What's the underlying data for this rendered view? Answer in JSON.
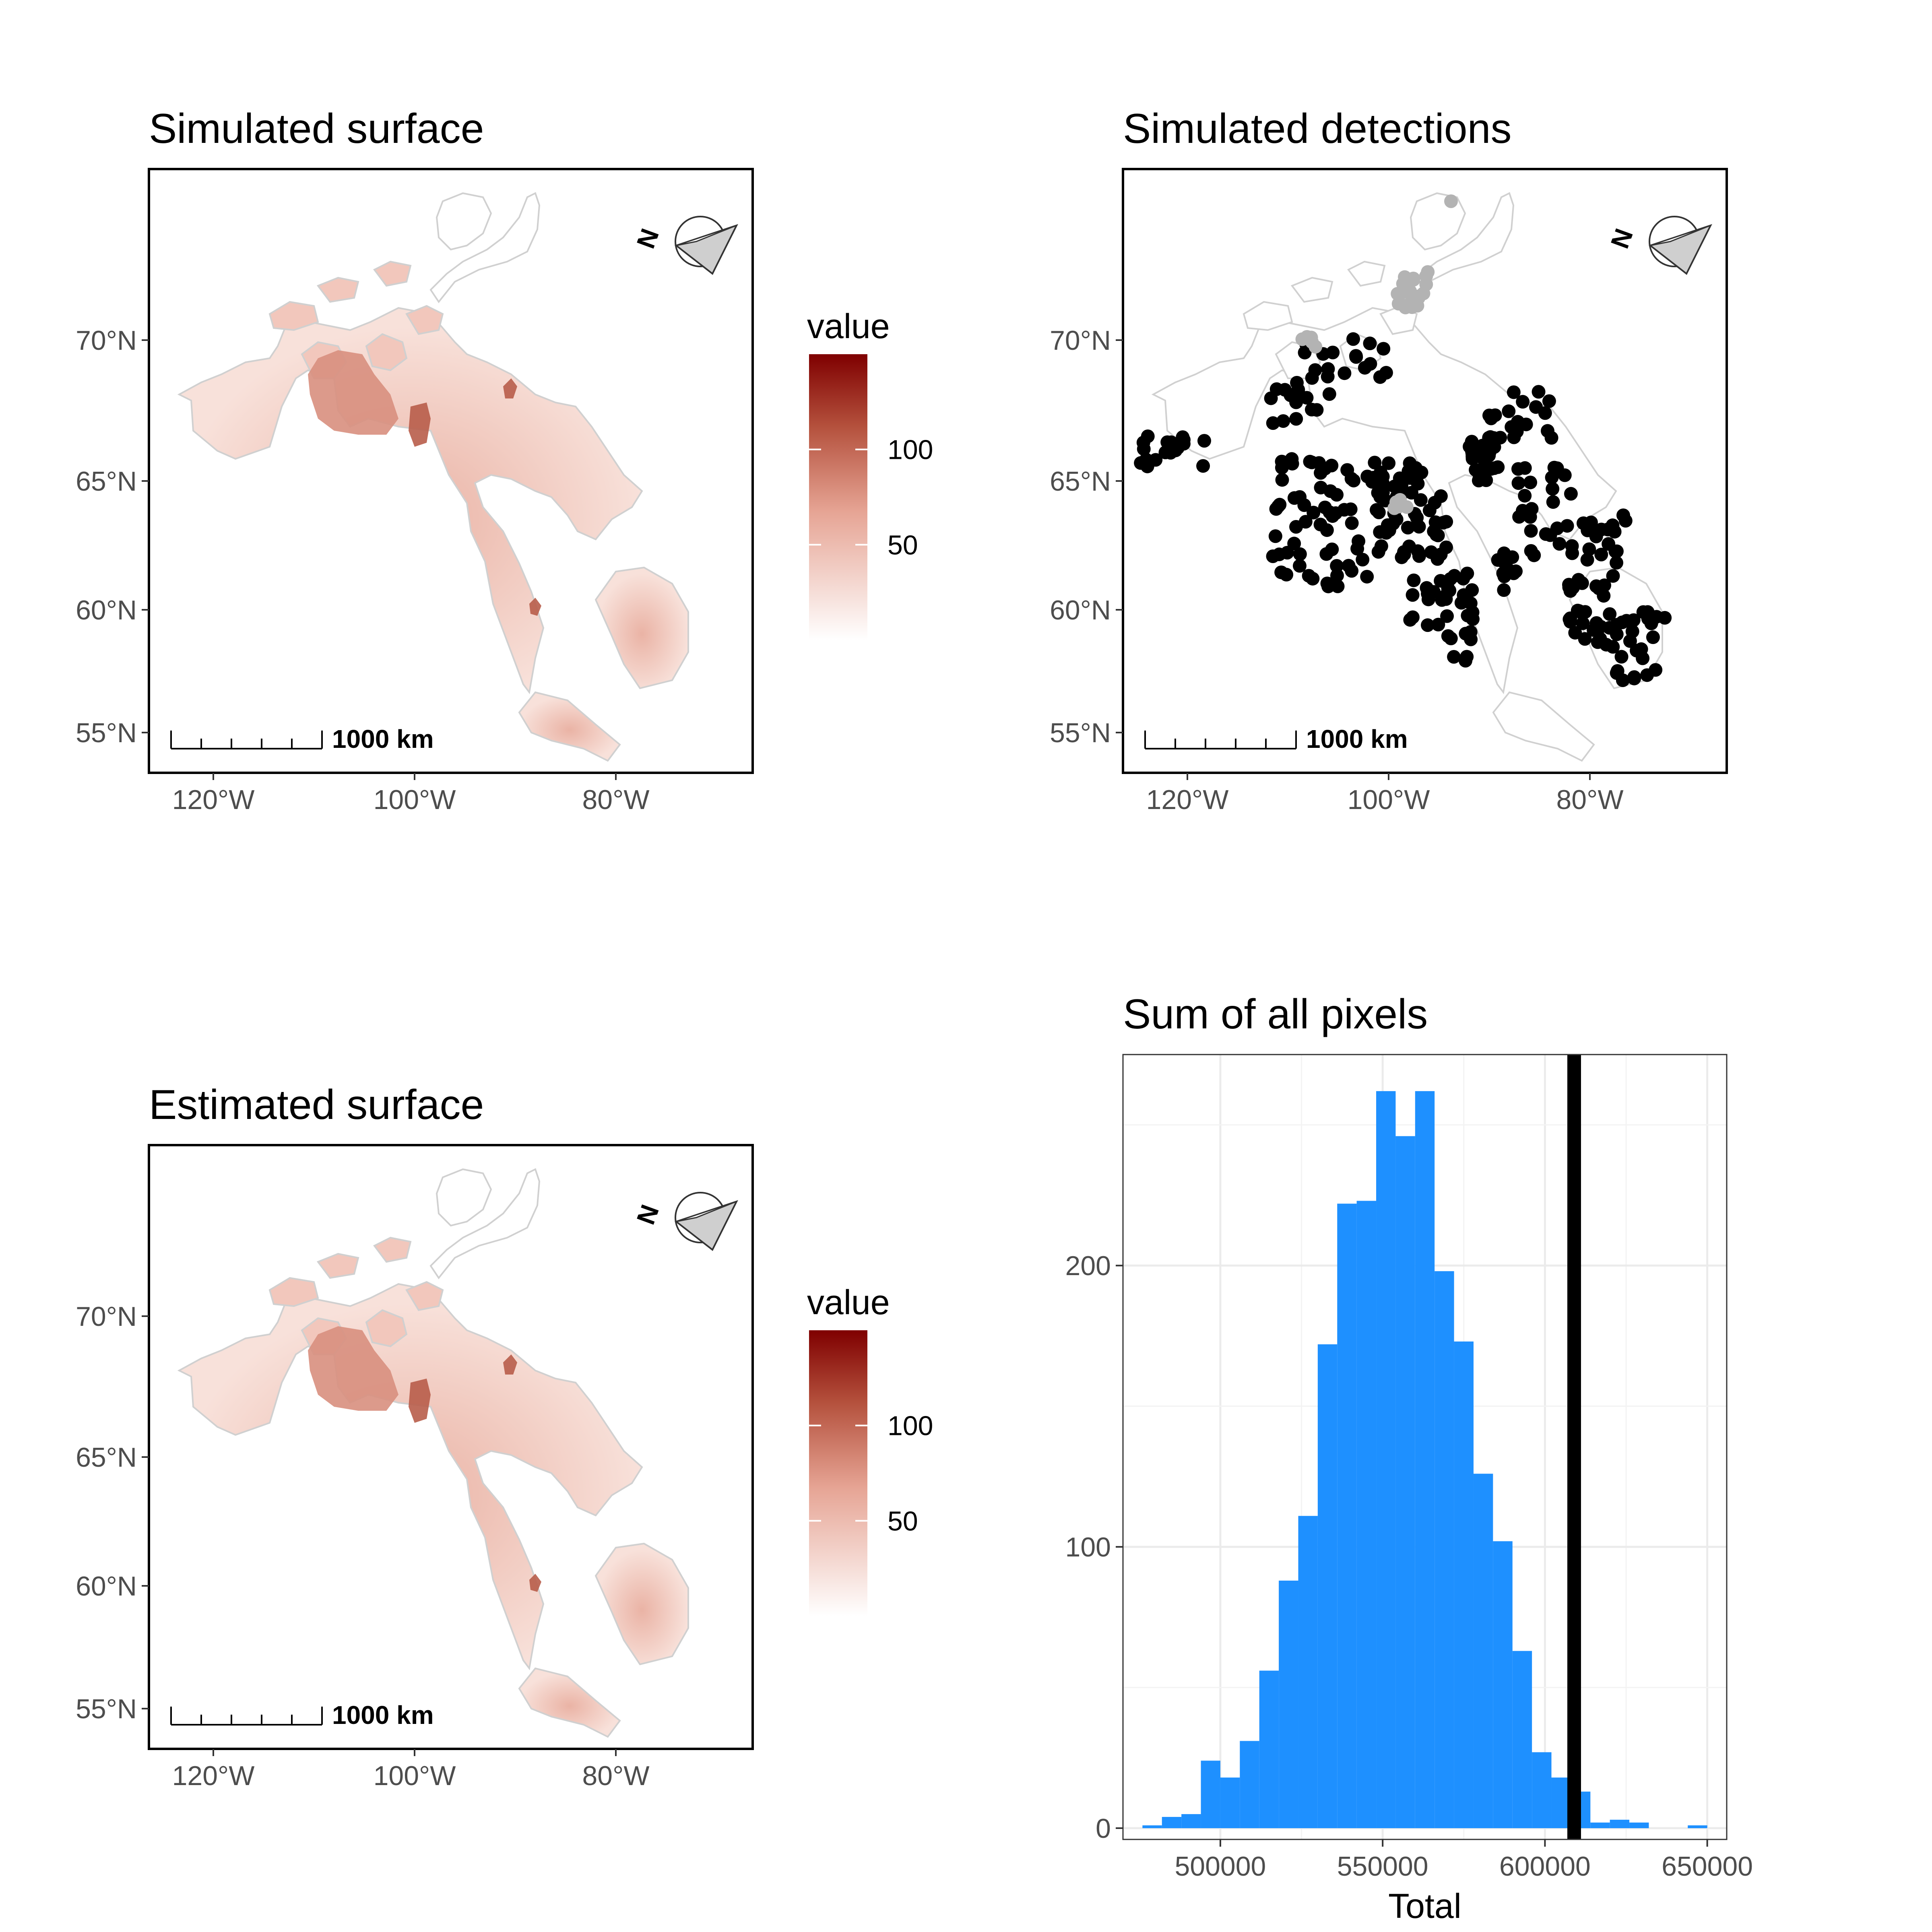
{
  "colors": {
    "surface_low": "#ffffff",
    "surface_high": "#7f0000",
    "detection_black": "#000000",
    "detection_grey": "#b3b3b3",
    "histogram_fill": "#1e90ff",
    "reference_line": "#000000"
  },
  "panels": {
    "simulated_surface": {
      "title": "Simulated surface"
    },
    "simulated_detections": {
      "title": "Simulated detections"
    },
    "estimated_surface": {
      "title": "Estimated surface"
    },
    "sum_pixels": {
      "title": "Sum of all pixels"
    }
  },
  "map_axes": {
    "y_ticks": [
      "70°N",
      "65°N",
      "60°N",
      "55°N"
    ],
    "x_ticks": [
      "120°W",
      "100°W",
      "80°W"
    ],
    "scale_bar_label": "1000 km",
    "north_arrow_label": "N",
    "north_arrow_icon": "north-arrow-icon"
  },
  "legend": {
    "title": "value",
    "ticks": [
      "100",
      "50"
    ]
  },
  "chart_data": [
    {
      "type": "heatmap",
      "title": "Simulated surface",
      "legend_title": "value",
      "legend_ticks": [
        100,
        50
      ],
      "value_range": [
        0,
        150
      ],
      "lat_ticks": [
        70,
        65,
        60,
        55
      ],
      "lon_ticks": [
        -120,
        -100,
        -80
      ]
    },
    {
      "type": "scatter",
      "title": "Simulated detections",
      "series": [
        {
          "color": "#000000",
          "description_of_points": "detections across the study region"
        },
        {
          "color": "#b3b3b3",
          "description_of_points": "points in the northern part"
        }
      ],
      "lat_ticks": [
        70,
        65,
        60,
        55
      ],
      "lon_ticks": [
        -120,
        -100,
        -80
      ]
    },
    {
      "type": "heatmap",
      "title": "Estimated surface",
      "legend_title": "value",
      "legend_ticks": [
        100,
        50
      ],
      "value_range": [
        0,
        150
      ],
      "lat_ticks": [
        70,
        65,
        60,
        55
      ],
      "lon_ticks": [
        -120,
        -100,
        -80
      ]
    },
    {
      "type": "bar",
      "title": "Sum of all pixels",
      "xlabel": "Total",
      "ylabel": "",
      "xlim": [
        470000,
        656000
      ],
      "ylim": [
        -4,
        275
      ],
      "x_ticks": [
        500000,
        550000,
        600000,
        650000
      ],
      "y_ticks": [
        0,
        100,
        200
      ],
      "bin_width": 6000,
      "bins_x": [
        479000,
        485000,
        491000,
        497000,
        503000,
        509000,
        515000,
        521000,
        527000,
        533000,
        539000,
        545000,
        551000,
        557000,
        563000,
        569000,
        575000,
        581000,
        587000,
        593000,
        599000,
        605000,
        611000,
        617000,
        623000,
        629000,
        635000,
        641000,
        647000
      ],
      "counts": [
        1,
        4,
        5,
        24,
        18,
        31,
        56,
        88,
        111,
        172,
        222,
        223,
        262,
        246,
        262,
        198,
        173,
        126,
        102,
        63,
        27,
        18,
        13,
        2,
        3,
        2,
        0,
        0,
        1
      ],
      "reference_line_x": 609000
    }
  ]
}
